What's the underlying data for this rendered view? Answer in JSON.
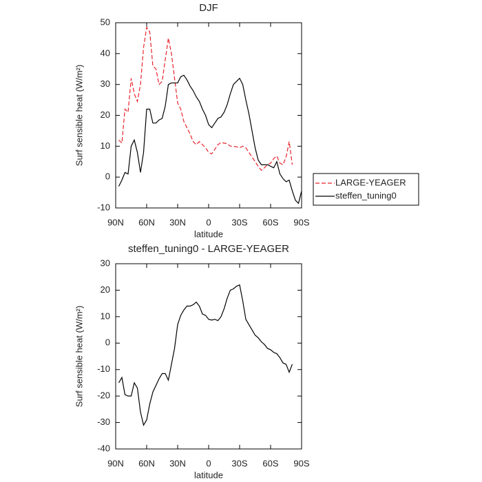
{
  "chart_data": [
    {
      "type": "line",
      "title": "DJF",
      "xlabel": "latitude",
      "ylabel": "Surf sensible heat (W/m²)",
      "x": [
        87,
        84,
        81,
        78,
        75,
        72,
        69,
        66,
        63,
        60,
        57,
        54,
        51,
        48,
        45,
        42,
        39,
        36,
        33,
        30,
        27,
        24,
        21,
        18,
        15,
        12,
        9,
        6,
        3,
        0,
        -3,
        -6,
        -9,
        -12,
        -15,
        -18,
        -21,
        -24,
        -27,
        -30,
        -33,
        -36,
        -39,
        -42,
        -45,
        -48,
        -51,
        -54,
        -57,
        -60,
        -63,
        -66,
        -69,
        -72,
        -75,
        -78,
        -81,
        -84,
        -87,
        -90
      ],
      "series": [
        {
          "name": "LARGE-YEAGER",
          "color": "#e8222a",
          "dash": true,
          "values": [
            12,
            11,
            22,
            21,
            32,
            27,
            24.5,
            30,
            42,
            48.5,
            47,
            36,
            35,
            30,
            31,
            38,
            45,
            40,
            32,
            24,
            22,
            18,
            16,
            14,
            11.5,
            10.5,
            11.5,
            10.5,
            9.5,
            8,
            7.5,
            9,
            10.5,
            11.2,
            11,
            10.8,
            10,
            10,
            9.8,
            9.5,
            10,
            9.5,
            8,
            6.5,
            5,
            3.5,
            2.2,
            3,
            4,
            4.5,
            6,
            6.8,
            4.5,
            4,
            6.5,
            11.5,
            4,
            null,
            null,
            null
          ]
        },
        {
          "name": "steffen_tuning0",
          "color": "#000000",
          "dash": false,
          "values": [
            -3,
            -1,
            1.5,
            1,
            10,
            12,
            8,
            1.5,
            8,
            22,
            22,
            17.5,
            17.5,
            18.5,
            19,
            23,
            30,
            30.5,
            30.5,
            30.5,
            32.5,
            33,
            31.5,
            29.5,
            28,
            26,
            24.5,
            22,
            20,
            17,
            16,
            17.5,
            19,
            19.5,
            21,
            23.5,
            27,
            30,
            31,
            32,
            30,
            25,
            20.5,
            15,
            9.5,
            5.5,
            4,
            4,
            4,
            3.5,
            3,
            5,
            1,
            -0.5,
            -1.5,
            -1,
            -4.5,
            -7.5,
            -8.5,
            -4.5
          ]
        }
      ],
      "xlim": [
        90,
        -90
      ],
      "xticks": [
        {
          "value": 90,
          "label": "90N"
        },
        {
          "value": 60,
          "label": "60N"
        },
        {
          "value": 30,
          "label": "30N"
        },
        0,
        {
          "value": -30,
          "label": "30S"
        },
        {
          "value": -60,
          "label": "60S"
        },
        {
          "value": -90,
          "label": "90S"
        }
      ],
      "ylim": [
        -10,
        50
      ],
      "yticks": [
        -10,
        0,
        10,
        20,
        30,
        40,
        50
      ],
      "legend": "outside-right"
    },
    {
      "type": "line",
      "title": "steffen_tuning0 - LARGE-YEAGER",
      "xlabel": "latitude",
      "ylabel": "Surf sensible heat (W/m²)",
      "x": [
        87,
        84,
        81,
        78,
        75,
        72,
        69,
        66,
        63,
        60,
        57,
        54,
        51,
        48,
        45,
        42,
        39,
        36,
        33,
        30,
        27,
        24,
        21,
        18,
        15,
        12,
        9,
        6,
        3,
        0,
        -3,
        -6,
        -9,
        -12,
        -15,
        -18,
        -21,
        -24,
        -27,
        -30,
        -33,
        -36,
        -39,
        -42,
        -45,
        -48,
        -51,
        -54,
        -57,
        -60,
        -63,
        -66,
        -69,
        -72,
        -75,
        -78,
        -81
      ],
      "series": [
        {
          "color": "#000000",
          "dash": false,
          "values": [
            -15,
            -13,
            -19.5,
            -20,
            -20,
            -15,
            -17,
            -26,
            -31,
            -29,
            -23,
            -18.5,
            -16,
            -13.5,
            -11.5,
            -11.5,
            -14,
            -8,
            -2,
            7,
            10.5,
            12.5,
            14,
            14,
            14.5,
            15.5,
            14,
            11,
            10.5,
            9,
            8.7,
            9,
            8.5,
            10,
            13,
            17,
            20,
            20.5,
            21.5,
            22,
            16,
            9,
            7,
            5,
            3,
            2,
            0.5,
            -0.5,
            -2,
            -2.5,
            -3.5,
            -4,
            -5.5,
            -7.5,
            -8,
            -11,
            -8
          ]
        }
      ],
      "xlim": [
        90,
        -90
      ],
      "xticks": [
        {
          "value": 90,
          "label": "90N"
        },
        {
          "value": 60,
          "label": "60N"
        },
        {
          "value": 30,
          "label": "30N"
        },
        0,
        {
          "value": -30,
          "label": "30S"
        },
        {
          "value": -60,
          "label": "60S"
        },
        {
          "value": -90,
          "label": "90S"
        }
      ],
      "ylim": [
        -40,
        30
      ],
      "yticks": [
        -40,
        -30,
        -20,
        -10,
        0,
        10,
        20,
        30
      ]
    }
  ]
}
